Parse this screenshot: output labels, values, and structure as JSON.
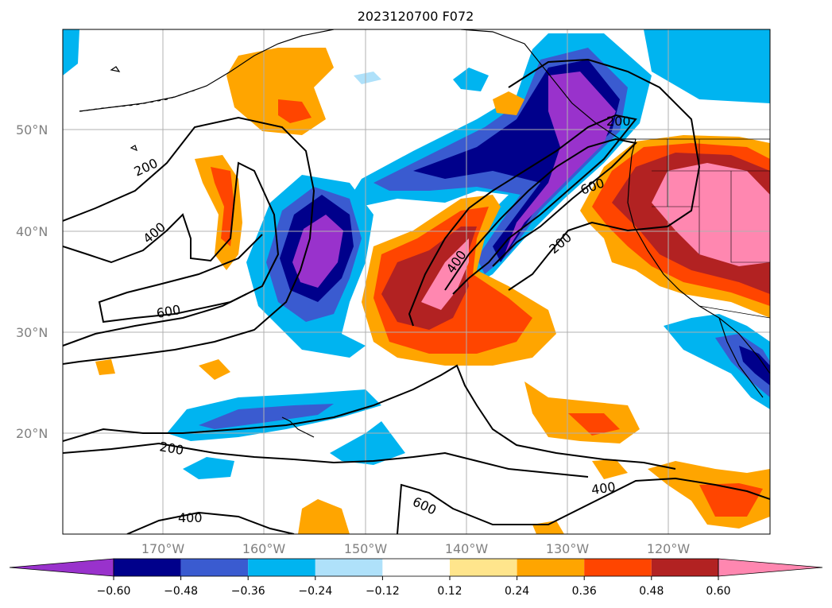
{
  "title": "2023120700 F072",
  "map": {
    "lat_labels": [
      "50°N",
      "40°N",
      "30°N",
      "20°N"
    ],
    "lon_labels": [
      "170°W",
      "160°W",
      "150°W",
      "140°W",
      "130°W",
      "120°W"
    ]
  },
  "contours": {
    "labels": [
      "200",
      "400",
      "600",
      "400",
      "600",
      "200",
      "200",
      "200",
      "400",
      "400",
      "600"
    ]
  },
  "colorbar": {
    "ticks": [
      "−0.60",
      "−0.48",
      "−0.36",
      "−0.24",
      "−0.12",
      "0.12",
      "0.24",
      "0.36",
      "0.48",
      "0.60"
    ],
    "colors": [
      "#9932cc",
      "#00008b",
      "#3a5bd0",
      "#00b4f0",
      "#afe1fa",
      "#ffffff",
      "#ffe58c",
      "#ffa500",
      "#ff4500",
      "#b22222",
      "#ff87b0"
    ]
  }
}
